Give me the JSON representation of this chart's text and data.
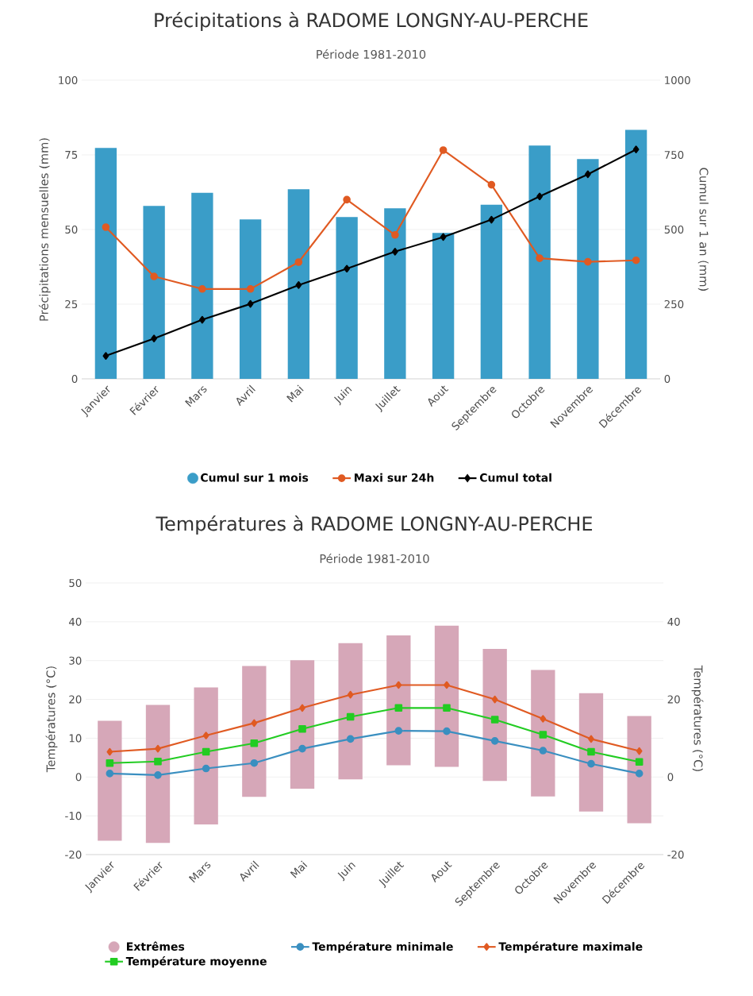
{
  "chart_data": [
    {
      "type": "bar",
      "title": "Précipitations à RADOME LONGNY-AU-PERCHE",
      "subtitle": "Période 1981-2010",
      "ylabel": "Précipitations mensuelles (mm)",
      "y2label": "Cumul sur 1 an (mm)",
      "categories": [
        "Janvier",
        "Février",
        "Mars",
        "Avril",
        "Mai",
        "Juin",
        "Juillet",
        "Aout",
        "Septembre",
        "Octobre",
        "Novembre",
        "Décembre"
      ],
      "series": [
        {
          "name": "Cumul sur 1 mois",
          "color": "#3a9dc8",
          "values": [
            77.3,
            57.9,
            62.3,
            53.4,
            63.5,
            54.2,
            57.1,
            48.9,
            58.3,
            78.1,
            73.6,
            83.4
          ]
        },
        {
          "name": "Maxi sur 24h",
          "type": "line",
          "color": "#e05a22",
          "marker": "circle",
          "values": [
            50.8,
            34.3,
            30.1,
            30.1,
            39.1,
            60.0,
            48.2,
            76.6,
            65.0,
            40.4,
            39.2,
            39.7
          ]
        },
        {
          "name": "Cumul total",
          "type": "line",
          "color": "#000000",
          "marker": "diamond",
          "axis": "y2",
          "values": [
            77,
            135,
            198,
            251,
            314,
            369,
            426,
            475,
            533,
            611,
            685,
            768
          ]
        }
      ],
      "ylim": [
        0,
        100
      ],
      "yticks": [
        0,
        25,
        50,
        75,
        100
      ],
      "y2lim": [
        0,
        1000
      ],
      "y2ticks": [
        0,
        250,
        500,
        750,
        1000
      ],
      "grid": "y",
      "legend": "bottom"
    },
    {
      "type": "bar",
      "title": "Températures à RADOME LONGNY-AU-PERCHE",
      "subtitle": "Période 1981-2010",
      "ylabel": "Températures (°C)",
      "y2label": "Températures (°C)",
      "categories": [
        "Janvier",
        "Février",
        "Mars",
        "Avril",
        "Mai",
        "Juin",
        "Juillet",
        "Aout",
        "Septembre",
        "Octobre",
        "Novembre",
        "Décembre"
      ],
      "series": [
        {
          "name": "Extrêmes",
          "color": "#d6a7b8",
          "base": [
            -16.4,
            -17.0,
            -12.2,
            -5.1,
            -3.0,
            -0.6,
            3.0,
            2.6,
            -1.0,
            -5.0,
            -8.9,
            -11.9
          ],
          "values": [
            30.9,
            35.6,
            35.3,
            33.7,
            33.1,
            35.1,
            33.5,
            36.4,
            34.0,
            32.6,
            30.5,
            27.6
          ]
        },
        {
          "name": "Température minimale",
          "type": "line",
          "color": "#3a8fc0",
          "marker": "circle",
          "values": [
            0.9,
            0.5,
            2.2,
            3.6,
            7.3,
            9.8,
            11.9,
            11.8,
            9.3,
            6.8,
            3.4,
            0.9
          ]
        },
        {
          "name": "Température maximale",
          "type": "line",
          "color": "#e05a22",
          "marker": "diamond",
          "values": [
            6.5,
            7.3,
            10.7,
            13.9,
            17.8,
            21.2,
            23.7,
            23.7,
            20.0,
            15.0,
            9.8,
            6.7
          ]
        },
        {
          "name": "Température moyenne",
          "type": "line",
          "color": "#22cc22",
          "marker": "square",
          "values": [
            3.6,
            4.0,
            6.5,
            8.7,
            12.4,
            15.5,
            17.8,
            17.8,
            14.8,
            10.9,
            6.5,
            3.9
          ]
        }
      ],
      "ylim": [
        -20,
        50
      ],
      "yticks": [
        -20,
        -10,
        0,
        10,
        20,
        30,
        40,
        50
      ],
      "y2lim": [
        -20,
        50
      ],
      "y2ticks": [
        -20,
        0,
        20,
        40
      ],
      "grid": "y",
      "legend": "bottom"
    }
  ]
}
